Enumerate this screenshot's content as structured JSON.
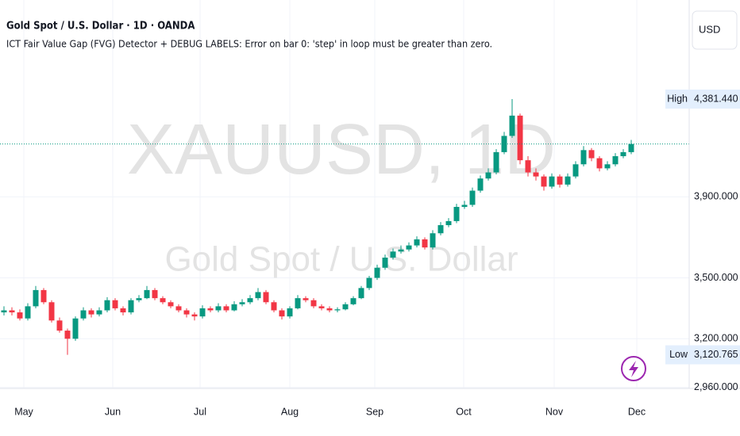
{
  "header": {
    "symbol_title": "Gold Spot / U.S. Dollar · 1D · OANDA",
    "indicator_message": "ICT Fair Value Gap (FVG) Detector + DEBUG LABELS: Error on bar 0: 'step' in loop must be greater than zero.",
    "currency_button": "USD"
  },
  "chart_data": {
    "type": "candlestick",
    "watermark": "XAUUSD, 1D",
    "watermark_subtitle": "Gold Spot / U.S. Dollar",
    "up_color": "#089981",
    "down_color": "#f23645",
    "last_price_color": "#089981",
    "grid": true,
    "xlim": [
      -0.5,
      86.3
    ],
    "xticks": [
      {
        "value": 2.5,
        "label": "May"
      },
      {
        "value": 13.7,
        "label": "Jun"
      },
      {
        "value": 24.7,
        "label": "Jul"
      },
      {
        "value": 36,
        "label": "Aug"
      },
      {
        "value": 46.7,
        "label": "Sep"
      },
      {
        "value": 57.9,
        "label": "Oct"
      },
      {
        "value": 69.3,
        "label": "Nov"
      },
      {
        "value": 79.7,
        "label": "Dec"
      }
    ],
    "ylim": [
      2955,
      4870
    ],
    "yticks": [
      {
        "value": 2960,
        "label": "2,960.000"
      },
      {
        "value": 3200,
        "label": "3,200.000"
      },
      {
        "value": 3500,
        "label": "3,500.000"
      },
      {
        "value": 3900,
        "label": "3,900.000"
      }
    ],
    "high_marker": {
      "label": "High",
      "value": 4381.44,
      "value_label": "4,381.440"
    },
    "low_marker": {
      "label": "Low",
      "value": 3120.765,
      "value_label": "3,120.765"
    },
    "candles": [
      [
        3330,
        3360,
        3315,
        3340
      ],
      [
        3340,
        3355,
        3315,
        3330
      ],
      [
        3330,
        3345,
        3290,
        3300
      ],
      [
        3300,
        3375,
        3290,
        3360
      ],
      [
        3360,
        3460,
        3350,
        3440
      ],
      [
        3440,
        3450,
        3370,
        3380
      ],
      [
        3380,
        3390,
        3280,
        3290
      ],
      [
        3290,
        3305,
        3230,
        3240
      ],
      [
        3240,
        3250,
        3120.765,
        3200
      ],
      [
        3200,
        3310,
        3190,
        3300
      ],
      [
        3300,
        3355,
        3290,
        3340
      ],
      [
        3340,
        3350,
        3305,
        3320
      ],
      [
        3320,
        3355,
        3310,
        3340
      ],
      [
        3340,
        3405,
        3330,
        3390
      ],
      [
        3390,
        3400,
        3340,
        3350
      ],
      [
        3350,
        3360,
        3315,
        3330
      ],
      [
        3330,
        3400,
        3320,
        3390
      ],
      [
        3390,
        3415,
        3380,
        3400
      ],
      [
        3400,
        3460,
        3395,
        3440
      ],
      [
        3440,
        3450,
        3390,
        3400
      ],
      [
        3400,
        3410,
        3370,
        3380
      ],
      [
        3380,
        3390,
        3350,
        3360
      ],
      [
        3360,
        3370,
        3330,
        3340
      ],
      [
        3340,
        3350,
        3305,
        3320
      ],
      [
        3320,
        3330,
        3290,
        3310
      ],
      [
        3310,
        3365,
        3300,
        3350
      ],
      [
        3350,
        3360,
        3330,
        3340
      ],
      [
        3340,
        3375,
        3330,
        3360
      ],
      [
        3360,
        3370,
        3330,
        3340
      ],
      [
        3340,
        3385,
        3335,
        3370
      ],
      [
        3370,
        3395,
        3360,
        3380
      ],
      [
        3380,
        3415,
        3370,
        3400
      ],
      [
        3400,
        3450,
        3390,
        3430
      ],
      [
        3430,
        3440,
        3370,
        3380
      ],
      [
        3380,
        3390,
        3330,
        3340
      ],
      [
        3340,
        3350,
        3295,
        3310
      ],
      [
        3310,
        3360,
        3300,
        3350
      ],
      [
        3350,
        3415,
        3345,
        3400
      ],
      [
        3400,
        3410,
        3380,
        3390
      ],
      [
        3390,
        3400,
        3350,
        3360
      ],
      [
        3360,
        3370,
        3340,
        3350
      ],
      [
        3350,
        3360,
        3330,
        3340
      ],
      [
        3340,
        3355,
        3330,
        3345
      ],
      [
        3345,
        3380,
        3340,
        3370
      ],
      [
        3370,
        3410,
        3365,
        3400
      ],
      [
        3400,
        3460,
        3395,
        3450
      ],
      [
        3450,
        3510,
        3440,
        3500
      ],
      [
        3500,
        3565,
        3490,
        3550
      ],
      [
        3550,
        3615,
        3540,
        3600
      ],
      [
        3600,
        3645,
        3590,
        3630
      ],
      [
        3630,
        3660,
        3620,
        3640
      ],
      [
        3640,
        3675,
        3630,
        3660
      ],
      [
        3660,
        3705,
        3650,
        3690
      ],
      [
        3690,
        3700,
        3640,
        3650
      ],
      [
        3650,
        3735,
        3640,
        3720
      ],
      [
        3720,
        3775,
        3710,
        3760
      ],
      [
        3760,
        3795,
        3750,
        3780
      ],
      [
        3780,
        3865,
        3770,
        3850
      ],
      [
        3850,
        3880,
        3840,
        3860
      ],
      [
        3860,
        3945,
        3850,
        3930
      ],
      [
        3930,
        4005,
        3920,
        3990
      ],
      [
        3990,
        4040,
        3980,
        4020
      ],
      [
        4020,
        4135,
        4010,
        4120
      ],
      [
        4120,
        4220,
        4110,
        4200
      ],
      [
        4200,
        4381.44,
        4190,
        4300
      ],
      [
        4300,
        4310,
        4060,
        4080
      ],
      [
        4080,
        4100,
        4000,
        4020
      ],
      [
        4020,
        4040,
        3980,
        4000
      ],
      [
        4000,
        4010,
        3930,
        3950
      ],
      [
        3950,
        4015,
        3940,
        4000
      ],
      [
        4000,
        4010,
        3945,
        3960
      ],
      [
        3960,
        4015,
        3950,
        4000
      ],
      [
        4000,
        4075,
        3990,
        4060
      ],
      [
        4060,
        4150,
        4050,
        4130
      ],
      [
        4130,
        4140,
        4075,
        4090
      ],
      [
        4090,
        4100,
        4025,
        4040
      ],
      [
        4040,
        4075,
        4030,
        4060
      ],
      [
        4060,
        4115,
        4050,
        4100
      ],
      [
        4100,
        4135,
        4090,
        4120
      ],
      [
        4120,
        4180,
        4110,
        4160
      ]
    ]
  }
}
